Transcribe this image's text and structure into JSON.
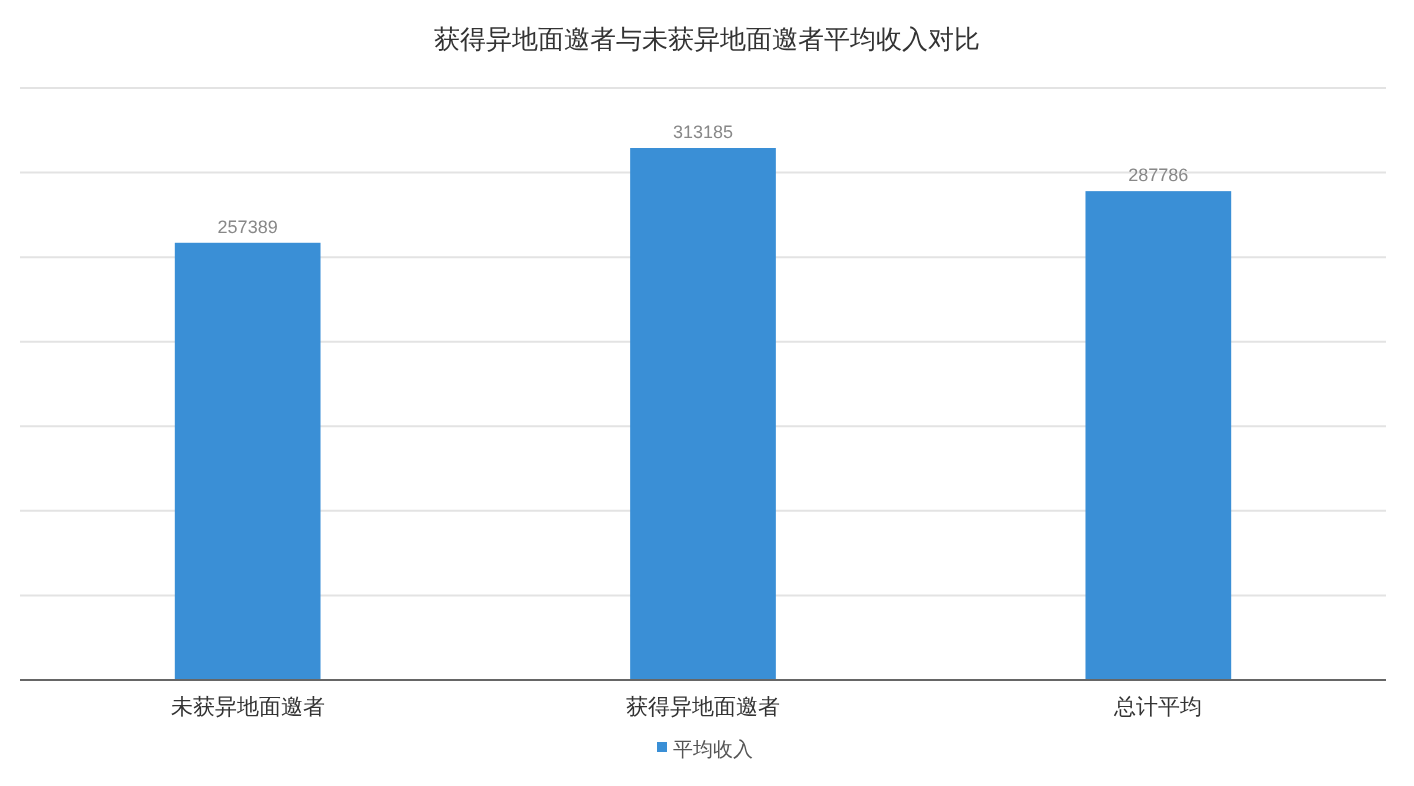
{
  "chart_data": {
    "type": "bar",
    "title": "获得异地面邀者与未获异地面邀者平均收入对比",
    "categories": [
      "未获异地面邀者",
      "获得异地面邀者",
      "总计平均"
    ],
    "series": [
      {
        "name": "平均收入",
        "color": "#3a8fd6",
        "values": [
          257389,
          313185,
          287786
        ]
      }
    ],
    "tick_labels": "x",
    "grid": "y",
    "data_labels": true,
    "legend": "bottom"
  }
}
